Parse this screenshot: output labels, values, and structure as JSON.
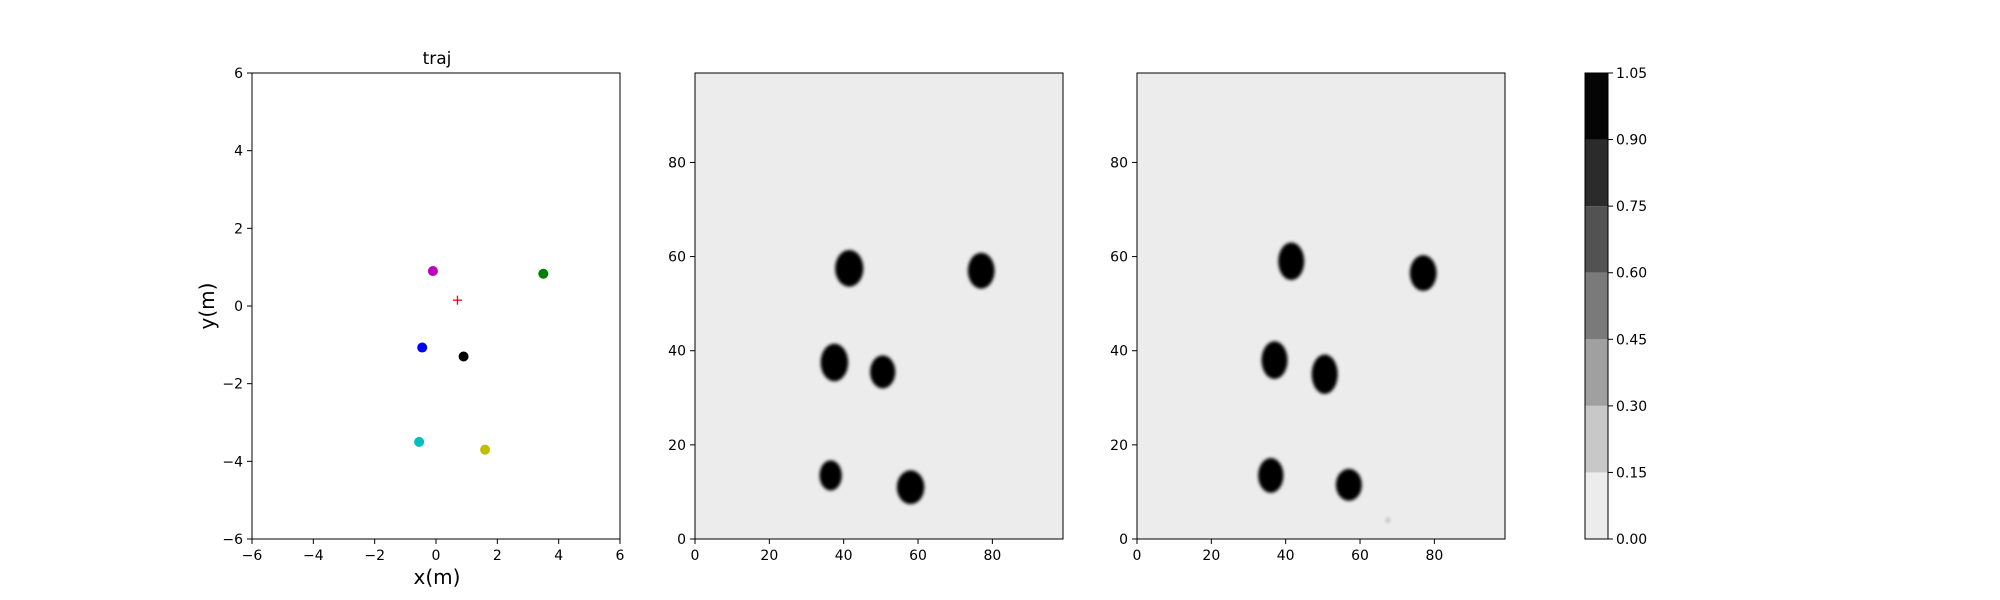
{
  "chart_data": [
    {
      "type": "scatter",
      "title": "traj",
      "xlabel": "x(m)",
      "ylabel": "y(m)",
      "xlim": [
        -6,
        6
      ],
      "ylim": [
        -6,
        6
      ],
      "xticks": [
        -6,
        -4,
        -2,
        0,
        2,
        4,
        6
      ],
      "yticks": [
        -6,
        -4,
        -2,
        0,
        2,
        4,
        6
      ],
      "xtick_labels": [
        "−6",
        "−4",
        "−2",
        "0",
        "2",
        "4",
        "6"
      ],
      "ytick_labels": [
        "−6",
        "−4",
        "−2",
        "0",
        "2",
        "4",
        "6"
      ],
      "grid": false,
      "points": [
        {
          "x": -0.1,
          "y": 0.9,
          "color": "#bf00bf",
          "marker": "circle"
        },
        {
          "x": 3.5,
          "y": 0.83,
          "color": "#008000",
          "marker": "circle"
        },
        {
          "x": 0.7,
          "y": 0.15,
          "color": "#ff0000",
          "marker": "plus"
        },
        {
          "x": -0.45,
          "y": -1.07,
          "color": "#0000ff",
          "marker": "circle"
        },
        {
          "x": 0.9,
          "y": -1.3,
          "color": "#000000",
          "marker": "circle"
        },
        {
          "x": -0.55,
          "y": -3.5,
          "color": "#00bfbf",
          "marker": "circle"
        },
        {
          "x": 1.6,
          "y": -3.7,
          "color": "#bfbf00",
          "marker": "circle"
        }
      ]
    },
    {
      "type": "heatmap",
      "xlim": [
        0,
        99
      ],
      "ylim": [
        0,
        99
      ],
      "xticks": [
        0,
        20,
        40,
        60,
        80
      ],
      "yticks": [
        0,
        20,
        40,
        60,
        80
      ],
      "xtick_labels": [
        "0",
        "20",
        "40",
        "60",
        "80"
      ],
      "ytick_labels": [
        "0",
        "20",
        "40",
        "60",
        "80"
      ],
      "background_value": 0.0,
      "blobs": [
        {
          "x": 41.5,
          "y": 57.5,
          "rx": 3.8,
          "ry": 3.9,
          "value": 1.0
        },
        {
          "x": 77,
          "y": 57,
          "rx": 3.6,
          "ry": 3.8,
          "value": 1.0
        },
        {
          "x": 37.5,
          "y": 37.5,
          "rx": 3.7,
          "ry": 4.0,
          "value": 1.0
        },
        {
          "x": 50.5,
          "y": 35.5,
          "rx": 3.4,
          "ry": 3.5,
          "value": 1.0
        },
        {
          "x": 36.5,
          "y": 13.5,
          "rx": 3.0,
          "ry": 3.2,
          "value": 1.0
        },
        {
          "x": 58,
          "y": 11,
          "rx": 3.7,
          "ry": 3.6,
          "value": 1.0
        }
      ]
    },
    {
      "type": "heatmap",
      "xlim": [
        0,
        99
      ],
      "ylim": [
        0,
        99
      ],
      "xticks": [
        0,
        20,
        40,
        60,
        80
      ],
      "yticks": [
        0,
        20,
        40,
        60,
        80
      ],
      "xtick_labels": [
        "0",
        "20",
        "40",
        "60",
        "80"
      ],
      "ytick_labels": [
        "0",
        "20",
        "40",
        "60",
        "80"
      ],
      "background_value": 0.0,
      "blobs": [
        {
          "x": 41.5,
          "y": 59,
          "rx": 3.5,
          "ry": 4.0,
          "value": 1.0
        },
        {
          "x": 77,
          "y": 56.5,
          "rx": 3.6,
          "ry": 3.8,
          "value": 1.0
        },
        {
          "x": 37,
          "y": 38,
          "rx": 3.5,
          "ry": 4.0,
          "value": 1.0
        },
        {
          "x": 50.5,
          "y": 35,
          "rx": 3.5,
          "ry": 4.2,
          "value": 1.0
        },
        {
          "x": 36,
          "y": 13.5,
          "rx": 3.4,
          "ry": 3.7,
          "value": 1.0
        },
        {
          "x": 57,
          "y": 11.5,
          "rx": 3.5,
          "ry": 3.4,
          "value": 1.0
        },
        {
          "x": 67.5,
          "y": 4,
          "rx": 0.6,
          "ry": 0.6,
          "value": 0.2
        }
      ]
    },
    {
      "type": "colorbar",
      "levels": [
        0.0,
        0.15,
        0.3,
        0.45,
        0.6,
        0.75,
        0.9,
        1.05
      ],
      "tick_labels": [
        "0.00",
        "0.15",
        "0.30",
        "0.45",
        "0.60",
        "0.75",
        "0.90",
        "1.05"
      ],
      "colors": [
        "#ececec",
        "#c8c8c8",
        "#a0a0a0",
        "#7a7a7a",
        "#525252",
        "#2b2b2b",
        "#050505"
      ]
    }
  ]
}
